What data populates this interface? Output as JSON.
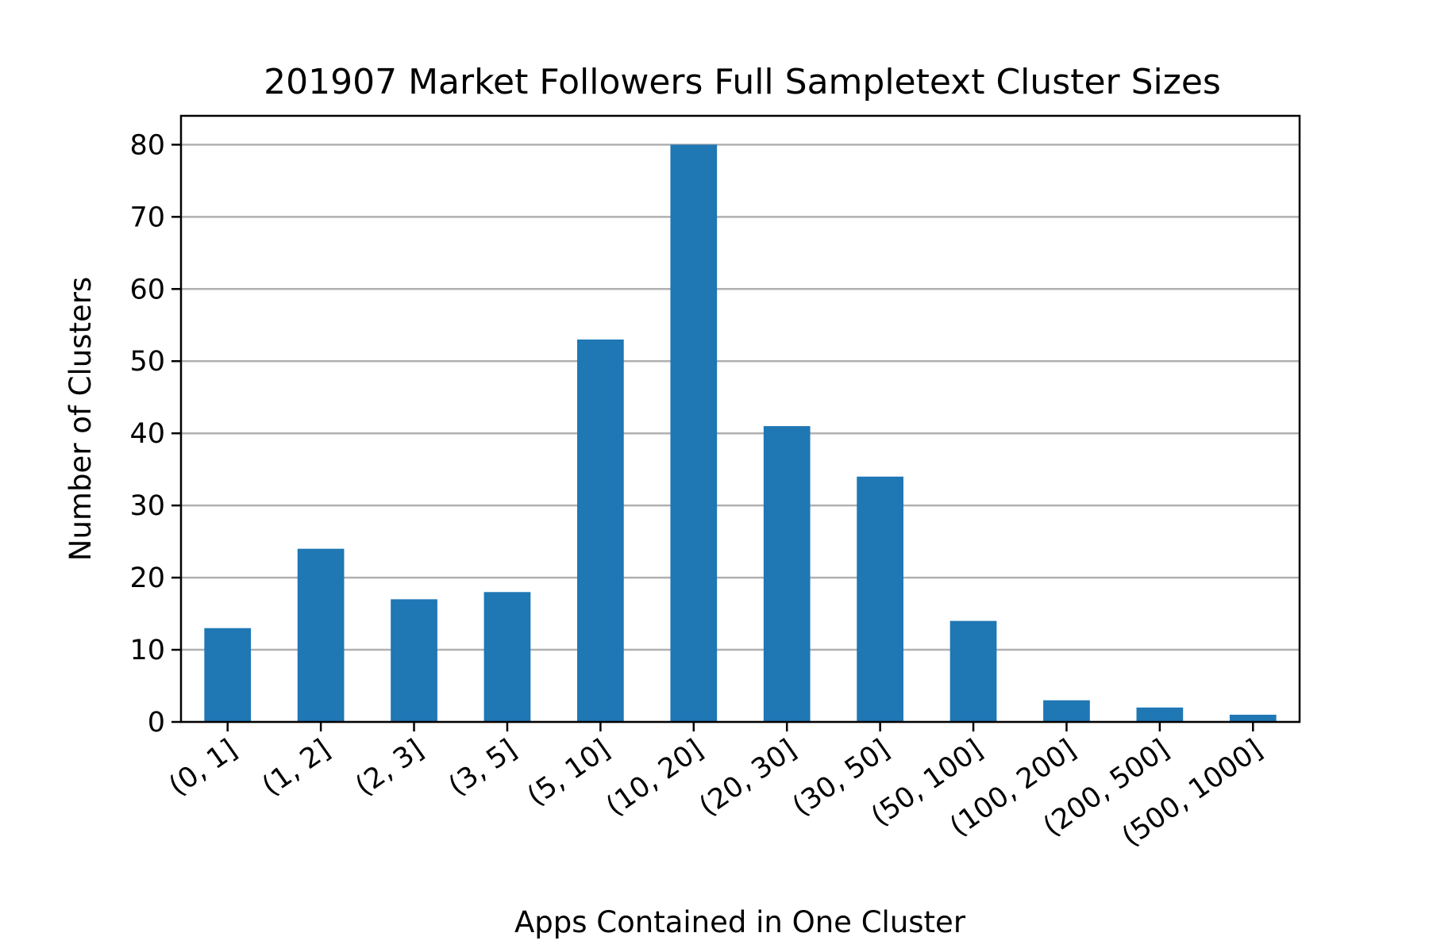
{
  "chart_data": {
    "type": "bar",
    "title": "201907 Market Followers Full Sampletext Cluster Sizes",
    "xlabel": "Apps Contained in One Cluster",
    "ylabel": "Number of Clusters",
    "categories": [
      "(0, 1]",
      "(1, 2]",
      "(2, 3]",
      "(3, 5]",
      "(5, 10]",
      "(10, 20]",
      "(20, 30]",
      "(30, 50]",
      "(50, 100]",
      "(100, 200]",
      "(200, 500]",
      "(500, 1000]"
    ],
    "values": [
      13,
      24,
      17,
      18,
      53,
      80,
      41,
      34,
      14,
      3,
      2,
      1
    ],
    "ylim": [
      0,
      84
    ],
    "yticks": [
      0,
      10,
      20,
      30,
      40,
      50,
      60,
      70,
      80
    ],
    "grid": "y",
    "legend": "none",
    "bar_color": "#1f77b4"
  }
}
